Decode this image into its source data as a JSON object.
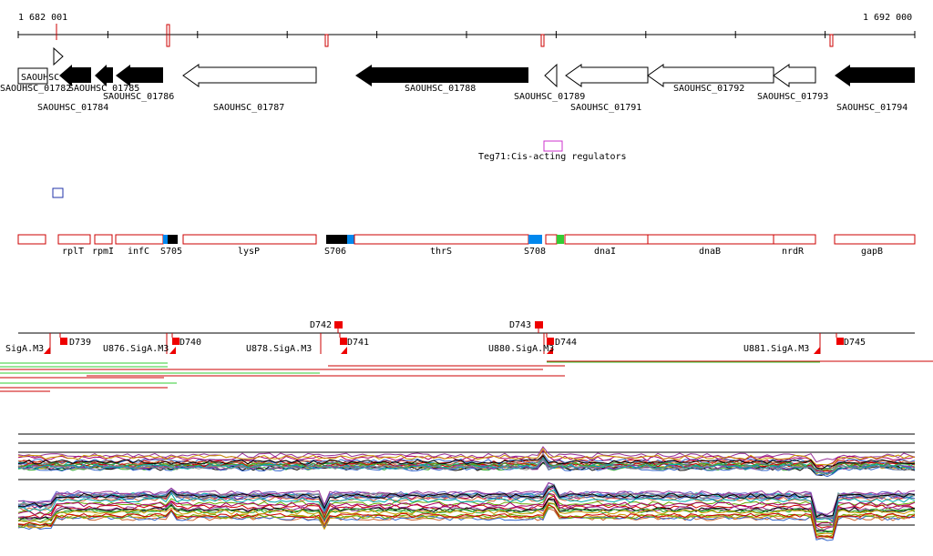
{
  "coords": {
    "start": "1 682 001",
    "end": "1 692 000"
  },
  "genes": [
    {
      "label": "SAOUHSC_01782",
      "fill": "none",
      "dir": "none"
    },
    {
      "label": "SAOUHSC_01784",
      "fill": "none",
      "dir": "right"
    },
    {
      "label": "SAOUHSC_01785",
      "fill": "black",
      "dir": "left"
    },
    {
      "label": "SAOUHSC_01786",
      "fill": "black",
      "dir": "left"
    },
    {
      "label": "SAOUHSC_01787",
      "fill": "white",
      "dir": "left"
    },
    {
      "label": "SAOUHSC_01788",
      "fill": "black",
      "dir": "left"
    },
    {
      "label": "SAOUHSC_01789",
      "fill": "white",
      "dir": "left"
    },
    {
      "label": "SAOUHSC_01791",
      "fill": "white",
      "dir": "left"
    },
    {
      "label": "SAOUHSC_01792",
      "fill": "white",
      "dir": "left"
    },
    {
      "label": "SAOUHSC_01793",
      "fill": "white",
      "dir": "left"
    },
    {
      "label": "SAOUHSC_01794",
      "fill": "black",
      "dir": "left"
    }
  ],
  "gene_box_text": "SAOUHSC",
  "regulator_label": "Teg71:Cis-acting regulators",
  "operon_labels": [
    "rplT",
    "rpmI",
    "infC",
    "S705",
    "lysP",
    "S706",
    "thrS",
    "S708",
    "dnaI",
    "dnaB",
    "nrdR",
    "gapB"
  ],
  "sites": {
    "up": [
      "D742",
      "D743"
    ],
    "down": [
      "D739",
      "D740",
      "D741",
      "D744",
      "D745"
    ],
    "siga": [
      "SigA.M3",
      "U876.SigA.M3",
      "U878.SigA.M3",
      "U880.SigA.M3",
      "U881.SigA.M3"
    ]
  },
  "colors": {
    "outline": "#cc0000",
    "marker": "#ee0000",
    "green_bar": "#33cc33",
    "blue_box": "#0088ee",
    "magenta_box": "#cc33cc",
    "navy_box": "#2233aa"
  }
}
